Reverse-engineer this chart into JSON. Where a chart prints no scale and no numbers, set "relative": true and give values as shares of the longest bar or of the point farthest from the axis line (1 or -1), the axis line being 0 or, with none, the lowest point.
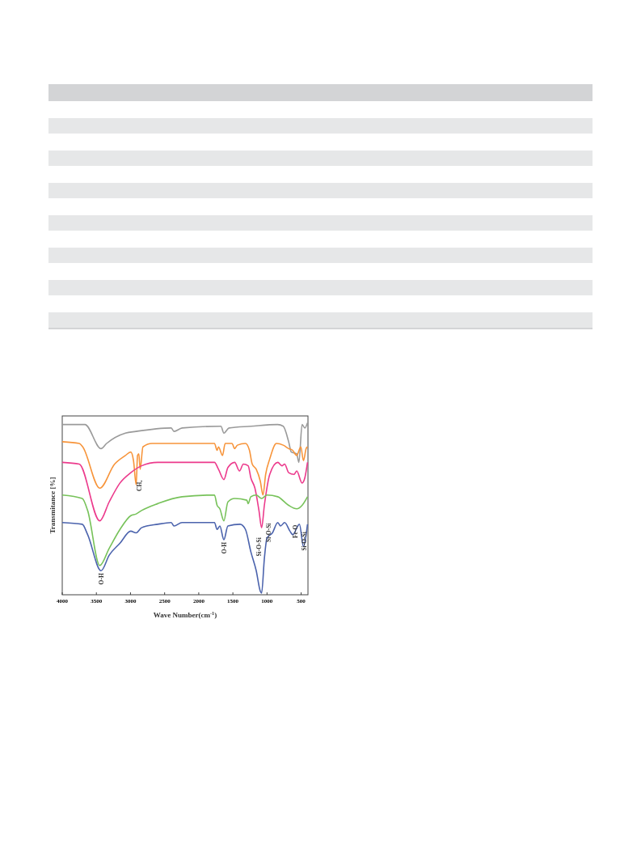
{
  "chart_data": {
    "type": "line",
    "relative": true,
    "xlabel": "Wave Number(cm$^{-1}$)",
    "ylabel": "Transmitance [%]",
    "xlim": [
      4000,
      400
    ],
    "xticks": [
      4000,
      3500,
      3000,
      2500,
      2000,
      1500,
      1000,
      500
    ],
    "grid": false,
    "marker": "none",
    "line_style": "solid",
    "series": [
      {
        "color": "#9a9a9a",
        "x": [
          4000,
          3668,
          3431,
          3350,
          3075,
          2920,
          2403,
          2363,
          2242,
          1675,
          1632,
          1556,
          1237,
          845,
          762,
          683,
          644,
          565,
          533,
          486,
          446,
          407
        ],
        "values": [
          0.99,
          0.99,
          0.85,
          0.88,
          0.94,
          0.95,
          0.97,
          0.95,
          0.97,
          0.98,
          0.94,
          0.97,
          0.98,
          0.99,
          0.98,
          0.89,
          0.83,
          0.82,
          0.77,
          0.99,
          0.97,
          1.0
        ]
      },
      {
        "color": "#f7943a",
        "x": [
          4000,
          3751,
          3700,
          3450,
          3233,
          3075,
          2996,
          2956,
          2917,
          2897,
          2878,
          2858,
          2818,
          2684,
          1770,
          1731,
          1711,
          1652,
          1613,
          1513,
          1474,
          1434,
          1316,
          1257,
          1217,
          1158,
          1098,
          1059,
          1020,
          960,
          862,
          762,
          683,
          624,
          565,
          505,
          466,
          427,
          407
        ],
        "values": [
          0.89,
          0.88,
          0.86,
          0.62,
          0.76,
          0.81,
          0.83,
          0.78,
          0.64,
          0.81,
          0.82,
          0.73,
          0.86,
          0.88,
          0.88,
          0.84,
          0.86,
          0.81,
          0.88,
          0.88,
          0.85,
          0.87,
          0.88,
          0.84,
          0.76,
          0.73,
          0.66,
          0.58,
          0.7,
          0.79,
          0.88,
          0.87,
          0.85,
          0.84,
          0.81,
          0.86,
          0.78,
          0.85,
          0.86
        ]
      },
      {
        "color": "#ec3a8c",
        "x": [
          4000,
          3751,
          3450,
          3312,
          3154,
          2996,
          2838,
          2601,
          1770,
          1711,
          1632,
          1573,
          1474,
          1403,
          1347,
          1276,
          1237,
          1177,
          1118,
          1079,
          1039,
          960,
          842,
          782,
          742,
          683,
          604,
          565,
          486,
          446,
          407
        ],
        "values": [
          0.77,
          0.76,
          0.43,
          0.54,
          0.65,
          0.71,
          0.75,
          0.77,
          0.77,
          0.73,
          0.67,
          0.74,
          0.77,
          0.72,
          0.76,
          0.75,
          0.68,
          0.62,
          0.49,
          0.39,
          0.52,
          0.7,
          0.77,
          0.75,
          0.76,
          0.71,
          0.7,
          0.72,
          0.65,
          0.68,
          0.77
        ]
      },
      {
        "color": "#77c25a",
        "x": [
          4000,
          3707,
          3628,
          3450,
          3312,
          3154,
          2996,
          2917,
          2838,
          2601,
          2245,
          1770,
          1731,
          1691,
          1632,
          1573,
          1474,
          1296,
          1276,
          1237,
          1158,
          1079,
          1000,
          842,
          683,
          565,
          486,
          407
        ],
        "values": [
          0.58,
          0.56,
          0.49,
          0.17,
          0.27,
          0.38,
          0.46,
          0.47,
          0.49,
          0.53,
          0.57,
          0.58,
          0.52,
          0.5,
          0.43,
          0.54,
          0.56,
          0.55,
          0.53,
          0.57,
          0.58,
          0.56,
          0.58,
          0.57,
          0.52,
          0.5,
          0.52,
          0.57
        ]
      },
      {
        "color": "#4b63ad",
        "x": [
          4000,
          3707,
          3628,
          3431,
          3312,
          3154,
          2996,
          2917,
          2838,
          2601,
          2403,
          2363,
          2245,
          1770,
          1731,
          1691,
          1632,
          1573,
          1395,
          1316,
          1237,
          1158,
          1098,
          1079,
          1039,
          1000,
          921,
          842,
          802,
          742,
          664,
          624,
          525,
          466,
          427,
          407
        ],
        "values": [
          0.42,
          0.41,
          0.35,
          0.14,
          0.23,
          0.3,
          0.37,
          0.36,
          0.39,
          0.41,
          0.42,
          0.4,
          0.42,
          0.42,
          0.38,
          0.4,
          0.32,
          0.4,
          0.41,
          0.38,
          0.25,
          0.14,
          0.02,
          0.01,
          0.21,
          0.33,
          0.36,
          0.42,
          0.4,
          0.42,
          0.37,
          0.35,
          0.41,
          0.28,
          0.35,
          0.41
        ]
      }
    ],
    "annotations": [
      {
        "text": "CH₂",
        "x": 2880,
        "y": 0.68
      },
      {
        "text": "O-H",
        "x": 3431,
        "y": 0.14
      },
      {
        "text": "O-H",
        "x": 1632,
        "y": 0.32
      },
      "Si-O-Si",
      "Si-O-Si",
      {
        "text": "Fe-O",
        "x": 585,
        "y": 0.42
      },
      {
        "text": "Si-O-Si",
        "x": 465,
        "y": 0.38
      }
    ]
  }
}
